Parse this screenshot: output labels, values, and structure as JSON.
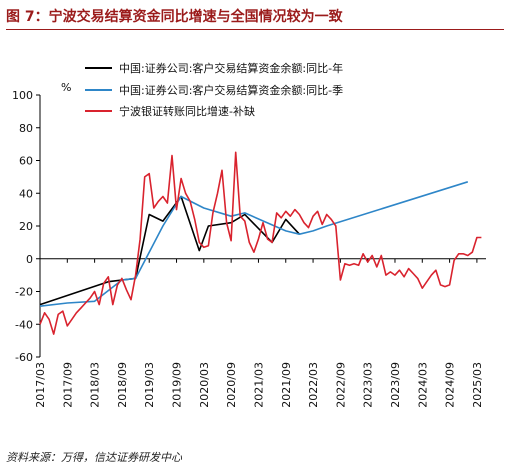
{
  "title": "图 7：宁波交易结算资金同比增速与全国情况较为一致",
  "source": "资料来源：万得，信达证券研发中心",
  "chart_data": {
    "type": "line",
    "yunit": "%",
    "ylim": [
      -60,
      100
    ],
    "yticks": [
      -60,
      -40,
      -20,
      0,
      20,
      40,
      60,
      80,
      100
    ],
    "xlim": [
      "2017/03",
      "2025/05"
    ],
    "xticks": [
      "2017/03",
      "2017/09",
      "2018/03",
      "2018/09",
      "2019/03",
      "2019/09",
      "2020/03",
      "2020/09",
      "2021/03",
      "2021/09",
      "2022/03",
      "2022/09",
      "2023/03",
      "2023/09",
      "2024/03",
      "2024/09",
      "2025/03"
    ],
    "legend_position": "top",
    "series": [
      {
        "name": "中国:证券公司:客户交易结算资金余额:同比-年",
        "color": "#000000",
        "points": [
          [
            "2017/03",
            -28
          ],
          [
            "2018/06",
            -14
          ],
          [
            "2018/12",
            -12
          ],
          [
            "2019/03",
            27
          ],
          [
            "2019/06",
            23
          ],
          [
            "2019/10",
            38
          ],
          [
            "2020/02",
            5
          ],
          [
            "2020/04",
            20
          ],
          [
            "2020/09",
            22
          ],
          [
            "2020/12",
            27
          ],
          [
            "2021/06",
            10
          ],
          [
            "2021/09",
            24
          ],
          [
            "2021/12",
            15
          ]
        ]
      },
      {
        "name": "中国:证券公司:客户交易结算资金余额:同比-季",
        "color": "#2e86c8",
        "points": [
          [
            "2017/03",
            -29
          ],
          [
            "2017/09",
            -27
          ],
          [
            "2018/03",
            -26
          ],
          [
            "2018/09",
            -13
          ],
          [
            "2018/12",
            -12
          ],
          [
            "2019/06",
            20
          ],
          [
            "2019/10",
            38
          ],
          [
            "2020/03",
            31
          ],
          [
            "2020/09",
            26
          ],
          [
            "2020/12",
            28
          ],
          [
            "2021/09",
            17
          ],
          [
            "2021/12",
            15
          ],
          [
            "2022/03",
            17
          ],
          [
            "2022/06",
            20
          ],
          [
            "2025/01",
            47
          ]
        ]
      },
      {
        "name": "宁波银证转账同比增速-补缺",
        "color": "#d9232e",
        "points": [
          [
            "2017/03",
            -40
          ],
          [
            "2017/04",
            -33
          ],
          [
            "2017/05",
            -37
          ],
          [
            "2017/06",
            -46
          ],
          [
            "2017/07",
            -34
          ],
          [
            "2017/08",
            -32
          ],
          [
            "2017/09",
            -41
          ],
          [
            "2017/10",
            -37
          ],
          [
            "2017/11",
            -33
          ],
          [
            "2017/12",
            -30
          ],
          [
            "2018/01",
            -27
          ],
          [
            "2018/02",
            -24
          ],
          [
            "2018/03",
            -20
          ],
          [
            "2018/04",
            -28
          ],
          [
            "2018/05",
            -15
          ],
          [
            "2018/06",
            -11
          ],
          [
            "2018/07",
            -28
          ],
          [
            "2018/08",
            -16
          ],
          [
            "2018/09",
            -12
          ],
          [
            "2018/10",
            -19
          ],
          [
            "2018/11",
            -25
          ],
          [
            "2018/12",
            -10
          ],
          [
            "2019/01",
            12
          ],
          [
            "2019/02",
            50
          ],
          [
            "2019/03",
            52
          ],
          [
            "2019/04",
            31
          ],
          [
            "2019/05",
            35
          ],
          [
            "2019/06",
            38
          ],
          [
            "2019/07",
            34
          ],
          [
            "2019/08",
            63
          ],
          [
            "2019/09",
            30
          ],
          [
            "2019/10",
            49
          ],
          [
            "2019/11",
            40
          ],
          [
            "2019/12",
            35
          ],
          [
            "2020/01",
            24
          ],
          [
            "2020/02",
            10
          ],
          [
            "2020/03",
            7
          ],
          [
            "2020/04",
            8
          ],
          [
            "2020/05",
            28
          ],
          [
            "2020/06",
            40
          ],
          [
            "2020/07",
            54
          ],
          [
            "2020/08",
            22
          ],
          [
            "2020/09",
            11
          ],
          [
            "2020/10",
            65
          ],
          [
            "2020/11",
            26
          ],
          [
            "2020/12",
            23
          ],
          [
            "2021/01",
            10
          ],
          [
            "2021/02",
            4
          ],
          [
            "2021/03",
            12
          ],
          [
            "2021/04",
            22
          ],
          [
            "2021/05",
            12
          ],
          [
            "2021/06",
            10
          ],
          [
            "2021/07",
            28
          ],
          [
            "2021/08",
            25
          ],
          [
            "2021/09",
            29
          ],
          [
            "2021/10",
            26
          ],
          [
            "2021/11",
            30
          ],
          [
            "2021/12",
            27
          ],
          [
            "2022/01",
            22
          ],
          [
            "2022/02",
            19
          ],
          [
            "2022/03",
            26
          ],
          [
            "2022/04",
            29
          ],
          [
            "2022/05",
            21
          ],
          [
            "2022/06",
            27
          ],
          [
            "2022/07",
            24
          ],
          [
            "2022/08",
            20
          ],
          [
            "2022/09",
            -13
          ],
          [
            "2022/10",
            -3
          ],
          [
            "2022/11",
            -4
          ],
          [
            "2022/12",
            -3
          ],
          [
            "2023/01",
            -4
          ],
          [
            "2023/02",
            3
          ],
          [
            "2023/03",
            -2
          ],
          [
            "2023/04",
            2
          ],
          [
            "2023/05",
            -5
          ],
          [
            "2023/06",
            2
          ],
          [
            "2023/07",
            -10
          ],
          [
            "2023/08",
            -8
          ],
          [
            "2023/09",
            -10
          ],
          [
            "2023/10",
            -7
          ],
          [
            "2023/11",
            -11
          ],
          [
            "2023/12",
            -6
          ],
          [
            "2024/01",
            -9
          ],
          [
            "2024/02",
            -12
          ],
          [
            "2024/03",
            -18
          ],
          [
            "2024/04",
            -14
          ],
          [
            "2024/05",
            -10
          ],
          [
            "2024/06",
            -7
          ],
          [
            "2024/07",
            -16
          ],
          [
            "2024/08",
            -17
          ],
          [
            "2024/09",
            -16
          ],
          [
            "2024/10",
            -1
          ],
          [
            "2024/11",
            3
          ],
          [
            "2024/12",
            3
          ],
          [
            "2025/01",
            2
          ],
          [
            "2025/02",
            4
          ],
          [
            "2025/03",
            13
          ],
          [
            "2025/04",
            13
          ]
        ]
      }
    ]
  }
}
